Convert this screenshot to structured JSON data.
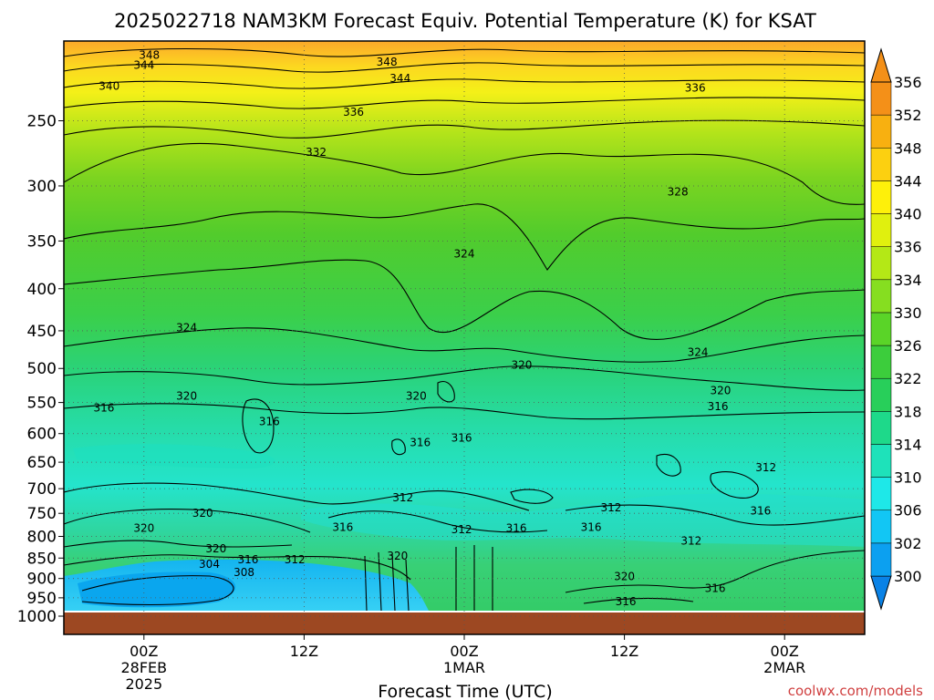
{
  "chart_data": {
    "type": "heatmap",
    "title": "2025022718 NAM3KM Forecast Equiv. Potential Temperature (K) for KSAT",
    "xlabel": "Forecast Time (UTC)",
    "ylabel": "",
    "credit": "coolwx.com/models",
    "x_ticks": [
      {
        "hour": 0,
        "lines": [
          "00Z",
          "28FEB",
          "2025"
        ]
      },
      {
        "hour": 12,
        "lines": [
          "12Z"
        ]
      },
      {
        "hour": 24,
        "lines": [
          "00Z",
          "1MAR"
        ]
      },
      {
        "hour": 36,
        "lines": [
          "12Z"
        ]
      },
      {
        "hour": 48,
        "lines": [
          "00Z",
          "2MAR"
        ]
      }
    ],
    "xlim": [
      -6,
      54
    ],
    "y_scale": "log",
    "ylim": [
      1000,
      200
    ],
    "y_ticks": [
      250,
      300,
      350,
      400,
      450,
      500,
      550,
      600,
      650,
      700,
      750,
      800,
      850,
      900,
      950,
      1000
    ],
    "colorbar": {
      "levels": [
        300,
        302,
        306,
        310,
        314,
        318,
        322,
        326,
        330,
        334,
        336,
        340,
        344,
        348,
        352,
        356
      ],
      "colors": [
        "#0a82e6",
        "#0ca0f0",
        "#12c6f4",
        "#1ee8e8",
        "#1ee2ba",
        "#1ed98a",
        "#28cf5a",
        "#3ccd3c",
        "#5ad428",
        "#86de20",
        "#b4e816",
        "#e0f00e",
        "#fef00a",
        "#fcd010",
        "#f8b010",
        "#f49018"
      ]
    },
    "contour_labels": [
      {
        "value": 348,
        "hour": 0.4,
        "p": 208
      },
      {
        "value": 344,
        "hour": 0,
        "p": 214
      },
      {
        "value": 340,
        "hour": -2.6,
        "p": 227
      },
      {
        "value": 348,
        "hour": 18.2,
        "p": 212
      },
      {
        "value": 344,
        "hour": 19.2,
        "p": 222
      },
      {
        "value": 336,
        "hour": 15.7,
        "p": 244
      },
      {
        "value": 336,
        "hour": 41.3,
        "p": 228
      },
      {
        "value": 332,
        "hour": 12.9,
        "p": 273
      },
      {
        "value": 328,
        "hour": 40,
        "p": 305
      },
      {
        "value": 324,
        "hour": 24,
        "p": 363
      },
      {
        "value": 324,
        "hour": 3.2,
        "p": 446
      },
      {
        "value": 324,
        "hour": 41.5,
        "p": 478
      },
      {
        "value": 320,
        "hour": 28.3,
        "p": 495
      },
      {
        "value": 320,
        "hour": 3.2,
        "p": 540
      },
      {
        "value": 320,
        "hour": 20.4,
        "p": 540
      },
      {
        "value": 320,
        "hour": 43.2,
        "p": 532
      },
      {
        "value": 316,
        "hour": -3,
        "p": 558
      },
      {
        "value": 316,
        "hour": 9.4,
        "p": 580
      },
      {
        "value": 316,
        "hour": 43,
        "p": 556
      },
      {
        "value": 316,
        "hour": 20.7,
        "p": 615
      },
      {
        "value": 316,
        "hour": 23.8,
        "p": 607
      },
      {
        "value": 312,
        "hour": 46.6,
        "p": 660
      },
      {
        "value": 312,
        "hour": 19.4,
        "p": 718
      },
      {
        "value": 312,
        "hour": 35,
        "p": 738
      },
      {
        "value": 316,
        "hour": 46.2,
        "p": 745
      },
      {
        "value": 320,
        "hour": 4.4,
        "p": 750
      },
      {
        "value": 320,
        "hour": 0,
        "p": 782
      },
      {
        "value": 316,
        "hour": 14.9,
        "p": 780
      },
      {
        "value": 312,
        "hour": 23.8,
        "p": 785
      },
      {
        "value": 316,
        "hour": 27.9,
        "p": 782
      },
      {
        "value": 316,
        "hour": 33.5,
        "p": 780
      },
      {
        "value": 312,
        "hour": 41,
        "p": 810
      },
      {
        "value": 320,
        "hour": 5.4,
        "p": 828
      },
      {
        "value": 316,
        "hour": 7.8,
        "p": 854
      },
      {
        "value": 312,
        "hour": 11.3,
        "p": 854
      },
      {
        "value": 320,
        "hour": 19,
        "p": 845
      },
      {
        "value": 304,
        "hour": 4.9,
        "p": 865
      },
      {
        "value": 308,
        "hour": 7.5,
        "p": 885
      },
      {
        "value": 320,
        "hour": 36,
        "p": 895
      },
      {
        "value": 316,
        "hour": 42.8,
        "p": 925
      },
      {
        "value": 316,
        "hour": 36.1,
        "p": 960
      }
    ]
  }
}
